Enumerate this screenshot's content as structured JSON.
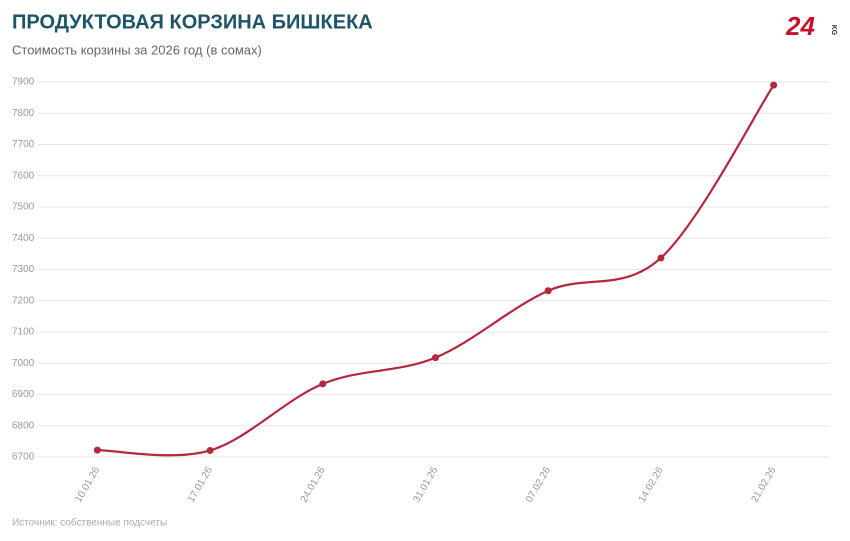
{
  "chart_data": {
    "type": "line",
    "title": "ПРОДУКТОВАЯ КОРЗИНА БИШКЕКА",
    "subtitle": "Стоимость корзины за 2026 год (в сомах)",
    "source": "Источник: собственные подсчеты",
    "logo": {
      "number": "24",
      "suffix": "KG"
    },
    "categories": [
      "10.01.26",
      "17.01.26",
      "24.01.26",
      "31.01.26",
      "07.02.26",
      "14.02.26",
      "21.02.26"
    ],
    "series": [
      {
        "color": "#b3283e",
        "values": [
          6722,
          6721,
          6934,
          7018,
          7232,
          7337,
          7890
        ]
      }
    ],
    "ylim": [
      6700,
      7900
    ],
    "yticks": [
      6700,
      6800,
      6900,
      7000,
      7100,
      7200,
      7300,
      7400,
      7500,
      7600,
      7700,
      7800,
      7900
    ],
    "grid": true
  }
}
